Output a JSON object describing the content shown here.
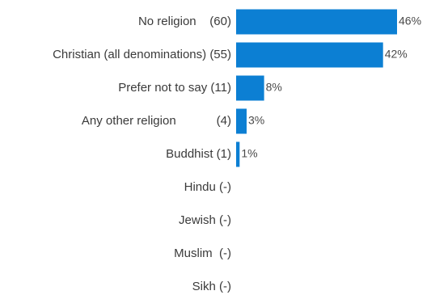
{
  "chart_data": {
    "type": "bar",
    "orientation": "horizontal",
    "title": "",
    "xlabel": "",
    "ylabel": "",
    "bar_color": "#0c7fd3",
    "xlim": [
      0,
      46
    ],
    "grid": false,
    "legend": "none",
    "categories": [
      {
        "name": "No religion",
        "count": "(60)",
        "label": "No religion    (60)",
        "value": 46,
        "pct_label": "46%"
      },
      {
        "name": "Christian (all denominations)",
        "count": "(55)",
        "label": "Christian (all denominations) (55)",
        "value": 42,
        "pct_label": "42%"
      },
      {
        "name": "Prefer not to say",
        "count": "(11)",
        "label": "Prefer not to say (11)",
        "value": 8,
        "pct_label": "8%"
      },
      {
        "name": "Any other religion",
        "count": "(4)",
        "label": "Any other religion            (4)",
        "value": 3,
        "pct_label": "3%"
      },
      {
        "name": "Buddhist",
        "count": "(1)",
        "label": "Buddhist (1)",
        "value": 1,
        "pct_label": "1%"
      },
      {
        "name": "Hindu",
        "count": "(-)",
        "label": "Hindu (-)",
        "value": 0,
        "pct_label": ""
      },
      {
        "name": "Jewish",
        "count": "(-)",
        "label": "Jewish (-)",
        "value": 0,
        "pct_label": ""
      },
      {
        "name": "Muslim",
        "count": "(-)",
        "label": "Muslim  (-)",
        "value": 0,
        "pct_label": ""
      },
      {
        "name": "Sikh",
        "count": "(-)",
        "label": "Sikh (-)",
        "value": 0,
        "pct_label": ""
      }
    ]
  }
}
